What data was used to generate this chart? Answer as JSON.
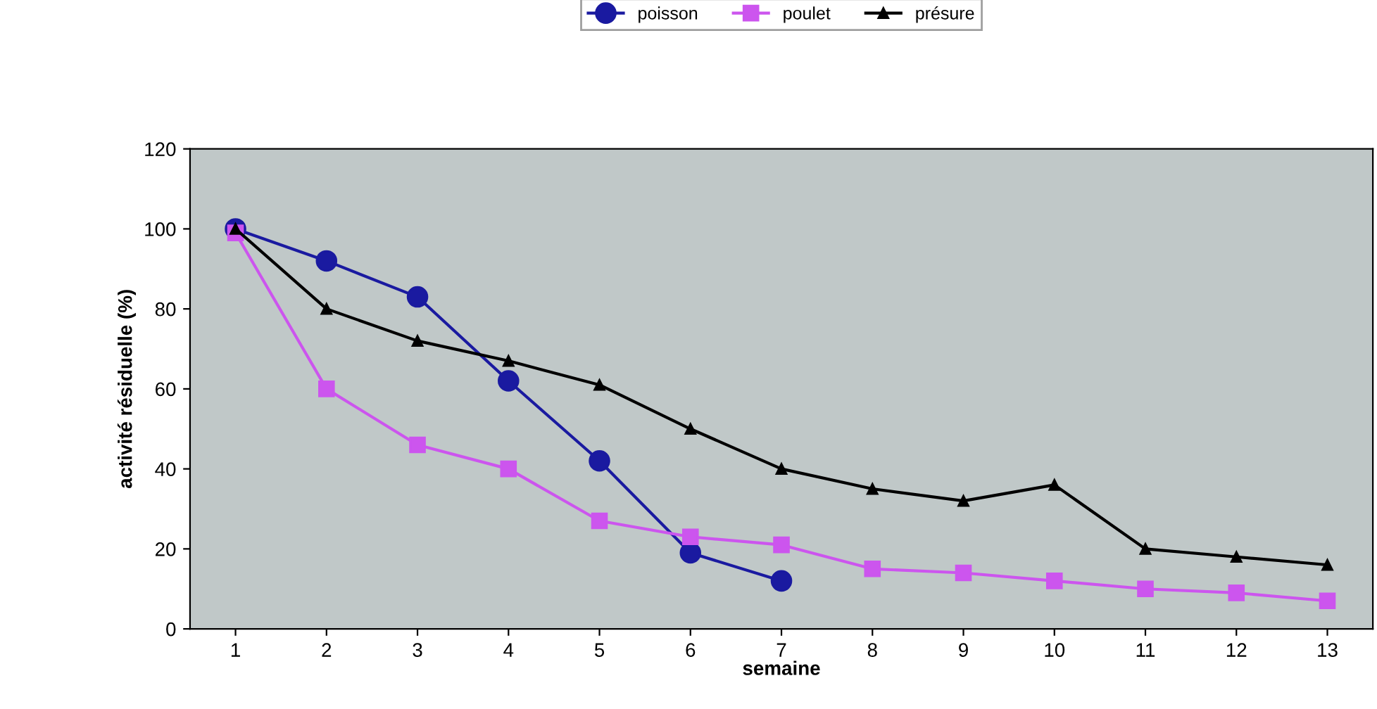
{
  "chart_data": {
    "type": "line",
    "xlabel": "semaine",
    "ylabel": "activité résiduelle (%)",
    "categories": [
      "1",
      "2",
      "3",
      "4",
      "5",
      "6",
      "7",
      "8",
      "9",
      "10",
      "11",
      "12",
      "13"
    ],
    "series": [
      {
        "name": "poisson",
        "color": "#1a1aa0",
        "marker": "circle",
        "values": [
          100,
          92,
          83,
          62,
          42,
          19,
          12,
          null,
          null,
          null,
          null,
          null,
          null
        ]
      },
      {
        "name": "poulet",
        "color": "#cc55ee",
        "marker": "square",
        "values": [
          99,
          60,
          46,
          40,
          27,
          23,
          21,
          15,
          14,
          12,
          10,
          9,
          7
        ]
      },
      {
        "name": "présure",
        "color": "#000000",
        "marker": "triangle",
        "values": [
          100,
          80,
          72,
          67,
          61,
          50,
          40,
          35,
          32,
          36,
          20,
          18,
          16
        ]
      }
    ],
    "ylim": [
      0,
      120
    ],
    "yticks": [
      0,
      20,
      40,
      60,
      80,
      100,
      120
    ],
    "grid": false,
    "legend": "top",
    "line_style": "solid"
  }
}
